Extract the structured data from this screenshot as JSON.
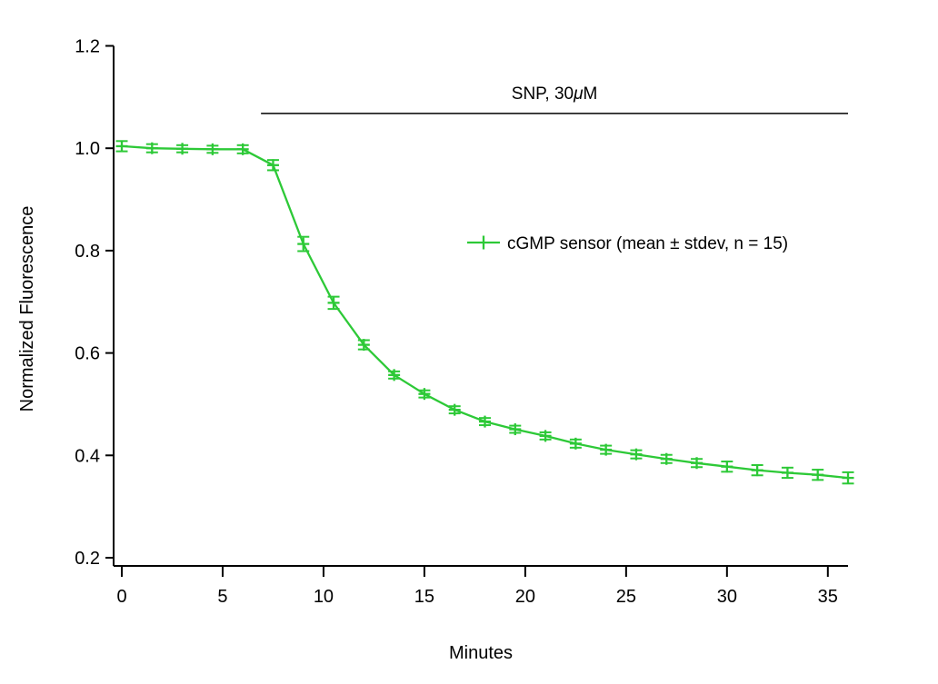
{
  "chart_data": {
    "type": "line",
    "title": "",
    "xlabel": "Minutes",
    "ylabel": "Normalized Fluorescence",
    "xlim": [
      0,
      36
    ],
    "ylim": [
      0.2,
      1.2
    ],
    "xticks": [
      0,
      5,
      10,
      15,
      20,
      25,
      30,
      35
    ],
    "yticks": [
      1.2,
      1.0,
      0.8,
      0.6,
      0.4,
      0.2
    ],
    "grid": false,
    "legend_position": "center-right",
    "series": [
      {
        "name": "cGMP sensor (mean ± stdev, n = 15)",
        "color": "#2dc937",
        "marker": "plus",
        "error_style": "bars-with-caps",
        "x": [
          0,
          1.5,
          3,
          4.5,
          6,
          7.5,
          9,
          10.5,
          12,
          13.5,
          15,
          16.5,
          18,
          19.5,
          21,
          22.5,
          24,
          25.5,
          27,
          28.5,
          30,
          31.5,
          33,
          34.5,
          36
        ],
        "y": [
          1.004,
          1.0,
          0.999,
          0.998,
          0.998,
          0.967,
          0.813,
          0.698,
          0.616,
          0.557,
          0.52,
          0.489,
          0.466,
          0.451,
          0.438,
          0.423,
          0.411,
          0.402,
          0.393,
          0.385,
          0.378,
          0.371,
          0.366,
          0.362,
          0.356
        ],
        "yerr": [
          0.01,
          0.008,
          0.007,
          0.007,
          0.008,
          0.01,
          0.014,
          0.012,
          0.009,
          0.007,
          0.007,
          0.007,
          0.007,
          0.007,
          0.007,
          0.008,
          0.008,
          0.008,
          0.008,
          0.008,
          0.01,
          0.01,
          0.01,
          0.01,
          0.011
        ]
      }
    ],
    "annotation": {
      "text": "SNP, 30μM",
      "x_from": 6.9,
      "x_to": 36,
      "y": 1.068
    }
  }
}
